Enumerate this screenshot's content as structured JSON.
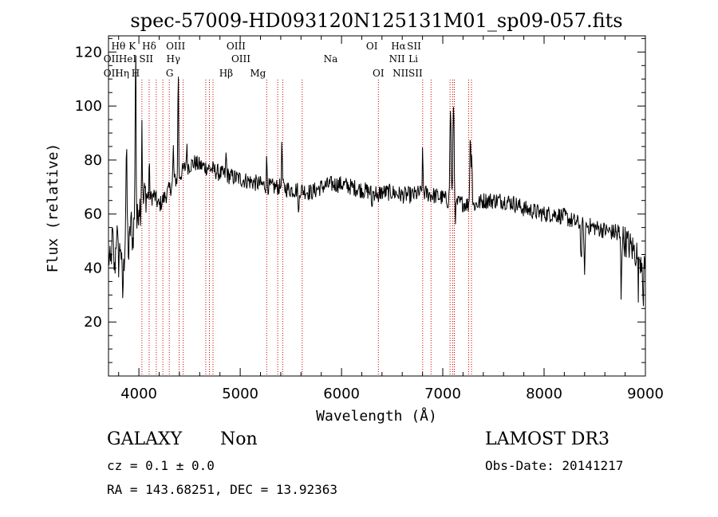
{
  "chart_data": {
    "type": "line",
    "title": "spec-57009-HD093120N125131M01_sp09-057.fits",
    "xlabel": "Wavelength (Å)",
    "ylabel": "Flux (relative)",
    "xlim": [
      3700,
      9000
    ],
    "ylim": [
      0,
      126
    ],
    "xticks": [
      4000,
      5000,
      6000,
      7000,
      8000,
      9000
    ],
    "xtick_labels": [
      "4000",
      "5000",
      "6000",
      "7000",
      "8000",
      "9000"
    ],
    "yticks": [
      20,
      40,
      60,
      80,
      100,
      120
    ],
    "ytick_labels": [
      "20",
      "40",
      "60",
      "80",
      "100",
      "120"
    ],
    "grid": false,
    "line_color": "#000000",
    "marker_color": "#cc0000",
    "continuum": [
      [
        3700,
        45
      ],
      [
        3720,
        40
      ],
      [
        3740,
        52
      ],
      [
        3760,
        38
      ],
      [
        3780,
        55
      ],
      [
        3800,
        42
      ],
      [
        3820,
        50
      ],
      [
        3840,
        30
      ],
      [
        3860,
        48
      ],
      [
        3880,
        60
      ],
      [
        3900,
        44
      ],
      [
        3920,
        58
      ],
      [
        3940,
        50
      ],
      [
        3960,
        62
      ],
      [
        3980,
        55
      ],
      [
        4000,
        65
      ],
      [
        4030,
        60
      ],
      [
        4060,
        68
      ],
      [
        4100,
        65
      ],
      [
        4150,
        67
      ],
      [
        4200,
        63
      ],
      [
        4250,
        66
      ],
      [
        4300,
        69
      ],
      [
        4350,
        72
      ],
      [
        4400,
        74
      ],
      [
        4450,
        77
      ],
      [
        4500,
        78
      ],
      [
        4550,
        79
      ],
      [
        4600,
        78
      ],
      [
        4700,
        77
      ],
      [
        4800,
        75
      ],
      [
        4900,
        74
      ],
      [
        5000,
        73
      ],
      [
        5100,
        72
      ],
      [
        5200,
        71
      ],
      [
        5300,
        70
      ],
      [
        5400,
        70
      ],
      [
        5500,
        69
      ],
      [
        5600,
        69
      ],
      [
        5700,
        68
      ],
      [
        5800,
        70
      ],
      [
        5900,
        71
      ],
      [
        6000,
        71
      ],
      [
        6100,
        70
      ],
      [
        6200,
        69
      ],
      [
        6300,
        68
      ],
      [
        6400,
        68
      ],
      [
        6500,
        68
      ],
      [
        6600,
        67
      ],
      [
        6700,
        67
      ],
      [
        6800,
        68
      ],
      [
        6900,
        67
      ],
      [
        7000,
        66
      ],
      [
        7100,
        64
      ],
      [
        7200,
        64
      ],
      [
        7300,
        63
      ],
      [
        7400,
        65
      ],
      [
        7500,
        65
      ],
      [
        7600,
        65
      ],
      [
        7700,
        64
      ],
      [
        7800,
        62
      ],
      [
        7900,
        61
      ],
      [
        8000,
        60
      ],
      [
        8100,
        60
      ],
      [
        8200,
        59
      ],
      [
        8300,
        57
      ],
      [
        8400,
        56
      ],
      [
        8500,
        55
      ],
      [
        8600,
        54
      ],
      [
        8700,
        53
      ],
      [
        8800,
        50
      ],
      [
        8900,
        46
      ],
      [
        9000,
        42
      ]
    ],
    "features": [
      [
        3876,
        24,
        5
      ],
      [
        3968,
        70,
        4
      ],
      [
        4030,
        36,
        4
      ],
      [
        4102,
        14,
        4
      ],
      [
        4340,
        13,
        4
      ],
      [
        4388,
        48,
        3
      ],
      [
        4472,
        8,
        4
      ],
      [
        4861,
        8,
        4
      ],
      [
        5262,
        10,
        4
      ],
      [
        5412,
        16,
        4
      ],
      [
        5577,
        -11,
        4
      ],
      [
        6300,
        -6,
        4
      ],
      [
        6364,
        -6,
        4
      ],
      [
        6801,
        14,
        4
      ],
      [
        7076,
        35,
        6
      ],
      [
        7106,
        38,
        6
      ],
      [
        7125,
        -5,
        5
      ],
      [
        7271,
        25,
        5
      ],
      [
        7285,
        20,
        5
      ],
      [
        8366,
        -14,
        5
      ],
      [
        8399,
        -22,
        4
      ],
      [
        8760,
        -20,
        4
      ],
      [
        8930,
        -12,
        4
      ],
      [
        8980,
        -18,
        4
      ]
    ],
    "line_markers": [
      {
        "label": "OII",
        "wavelength": 3727,
        "row": 2
      },
      {
        "label": "OII",
        "wavelength": 3727,
        "row": 3
      },
      {
        "label": "Hθ",
        "wavelength": 3798,
        "row": 1
      },
      {
        "label": "Hη",
        "wavelength": 3835,
        "row": 3
      },
      {
        "label": "HeI",
        "wavelength": 3889,
        "row": 2
      },
      {
        "label": "K",
        "wavelength": 3934,
        "row": 1
      },
      {
        "label": "H",
        "wavelength": 3968,
        "row": 3
      },
      {
        "label": "Hδ",
        "wavelength": 4102,
        "row": 1
      },
      {
        "label": "SII",
        "wavelength": 4072,
        "row": 2
      },
      {
        "label": "OIII",
        "wavelength": 4363,
        "row": 1
      },
      {
        "label": "Hγ",
        "wavelength": 4340,
        "row": 2
      },
      {
        "label": "G",
        "wavelength": 4304,
        "row": 3
      },
      {
        "label": "OIII",
        "wavelength": 4959,
        "row": 1
      },
      {
        "label": "OIII",
        "wavelength": 5007,
        "row": 2
      },
      {
        "label": "Hβ",
        "wavelength": 4861,
        "row": 3
      },
      {
        "label": "Mg",
        "wavelength": 5175,
        "row": 3
      },
      {
        "label": "Na",
        "wavelength": 5893,
        "row": 2
      },
      {
        "label": "OI",
        "wavelength": 6300,
        "row": 1
      },
      {
        "label": "OI",
        "wavelength": 6364,
        "row": 3
      },
      {
        "label": "Hα",
        "wavelength": 6563,
        "row": 1
      },
      {
        "label": "NII",
        "wavelength": 6548,
        "row": 2
      },
      {
        "label": "NII",
        "wavelength": 6583,
        "row": 3
      },
      {
        "label": "SII",
        "wavelength": 6716,
        "row": 1
      },
      {
        "label": "Li",
        "wavelength": 6708,
        "row": 2
      },
      {
        "label": "SII",
        "wavelength": 6731,
        "row": 3
      }
    ],
    "marker_wavelengths": [
      4030,
      4102,
      4172,
      4236,
      4300,
      4398,
      4438,
      4660,
      4696,
      4732,
      5262,
      5370,
      5420,
      5612,
      6364,
      6801,
      6884,
      7071,
      7098,
      7114,
      7256,
      7283
    ]
  },
  "info": {
    "object_class": "GALAXY",
    "subclass": "Non",
    "redshift": "cz =  0.1  ±  0.0",
    "coords": "RA = 143.68251, DEC =   13.92363",
    "survey": "LAMOST DR3",
    "obs_date": "Obs-Date: 20141217"
  }
}
